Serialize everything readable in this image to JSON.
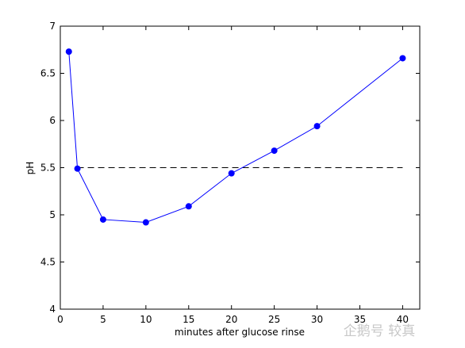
{
  "chart_data": {
    "type": "line",
    "x_label": "minutes after glucose rinse",
    "y_label": "pH",
    "x": [
      1,
      2,
      5,
      10,
      15,
      20,
      25,
      30,
      40
    ],
    "series": [
      {
        "color": "#0000ff",
        "values": [
          6.73,
          5.49,
          4.95,
          4.92,
          5.09,
          5.44,
          5.68,
          5.94,
          6.66
        ]
      }
    ],
    "reference_line": {
      "y": 5.5,
      "x": [
        2,
        40
      ],
      "color": "#000000",
      "style": "dashed"
    },
    "xlim": [
      0,
      42
    ],
    "ylim": [
      4,
      7
    ],
    "xticks": [
      0,
      5,
      10,
      15,
      20,
      25,
      30,
      35,
      40
    ],
    "yticks": [
      4,
      4.5,
      5,
      5.5,
      6,
      6.5,
      7
    ],
    "grid": false
  },
  "watermark": "企鹅号 较真"
}
